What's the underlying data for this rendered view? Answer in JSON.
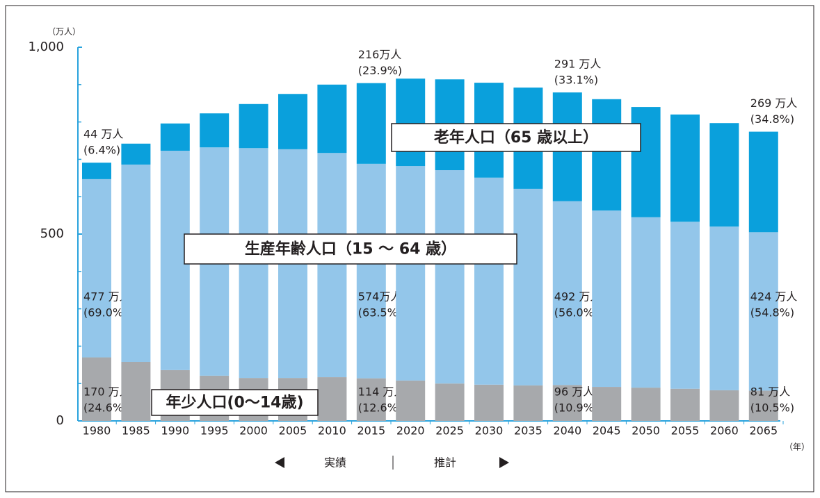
{
  "chart_data": {
    "type": "stacked_bar",
    "unit_label": "（万人）",
    "x_unit_label": "（年）",
    "period_actual": "実績",
    "period_projection": "推計",
    "categories": [
      "1980",
      "1985",
      "1990",
      "1995",
      "2000",
      "2005",
      "2010",
      "2015",
      "2020",
      "2025",
      "2030",
      "2035",
      "2040",
      "2045",
      "2050",
      "2055",
      "2060",
      "2065"
    ],
    "series": [
      {
        "name": "年少人口(0〜14歳)",
        "color": "#a7a9ac",
        "values": [
          170,
          158,
          136,
          121,
          115,
          115,
          117,
          114,
          108,
          100,
          97,
          95,
          96,
          91,
          89,
          86,
          82,
          81
        ],
        "value_labels": [
          "170 万人",
          null,
          null,
          null,
          null,
          null,
          null,
          "114 万人",
          null,
          null,
          null,
          null,
          "96 万人",
          null,
          null,
          null,
          null,
          "81 万人"
        ],
        "shares": [
          "(24.6%)",
          null,
          null,
          null,
          null,
          null,
          null,
          "(12.6%)",
          null,
          null,
          null,
          null,
          "(10.9%)",
          null,
          null,
          null,
          null,
          "(10.5%)"
        ]
      },
      {
        "name": "生産年齢人口（15 〜 64 歳）",
        "color": "#93c6ea",
        "values": [
          477,
          528,
          587,
          611,
          615,
          612,
          600,
          574,
          574,
          571,
          554,
          526,
          492,
          472,
          456,
          447,
          438,
          424
        ],
        "value_labels": [
          "477 万人",
          null,
          null,
          null,
          null,
          null,
          null,
          "574万人",
          null,
          null,
          null,
          null,
          "492 万人",
          null,
          null,
          null,
          null,
          "424 万人"
        ],
        "shares": [
          "(69.0%)",
          null,
          null,
          null,
          null,
          null,
          null,
          "(63.5%)",
          null,
          null,
          null,
          null,
          "(56.0%)",
          null,
          null,
          null,
          null,
          "(54.8%)"
        ]
      },
      {
        "name": "老年人口（65 歳以上）",
        "color": "#0aa0dc",
        "values": [
          44,
          56,
          73,
          91,
          118,
          148,
          183,
          216,
          234,
          243,
          254,
          271,
          291,
          298,
          295,
          287,
          277,
          269
        ],
        "value_labels": [
          "44 万人",
          null,
          null,
          null,
          null,
          null,
          null,
          "216万人",
          null,
          null,
          null,
          null,
          "291 万人",
          null,
          null,
          null,
          null,
          "269 万人"
        ],
        "shares": [
          "(6.4%)",
          null,
          null,
          null,
          null,
          null,
          null,
          "(23.9%)",
          null,
          null,
          null,
          null,
          "(33.1%)",
          null,
          null,
          null,
          null,
          "(34.8%)"
        ]
      }
    ],
    "ylim": [
      0,
      1000
    ],
    "yticks": [
      0,
      500,
      {
        "value": 1000,
        "label": "1,000"
      }
    ],
    "y_minor_ticks": [
      100,
      200,
      300,
      400,
      600,
      700,
      800,
      900
    ]
  }
}
